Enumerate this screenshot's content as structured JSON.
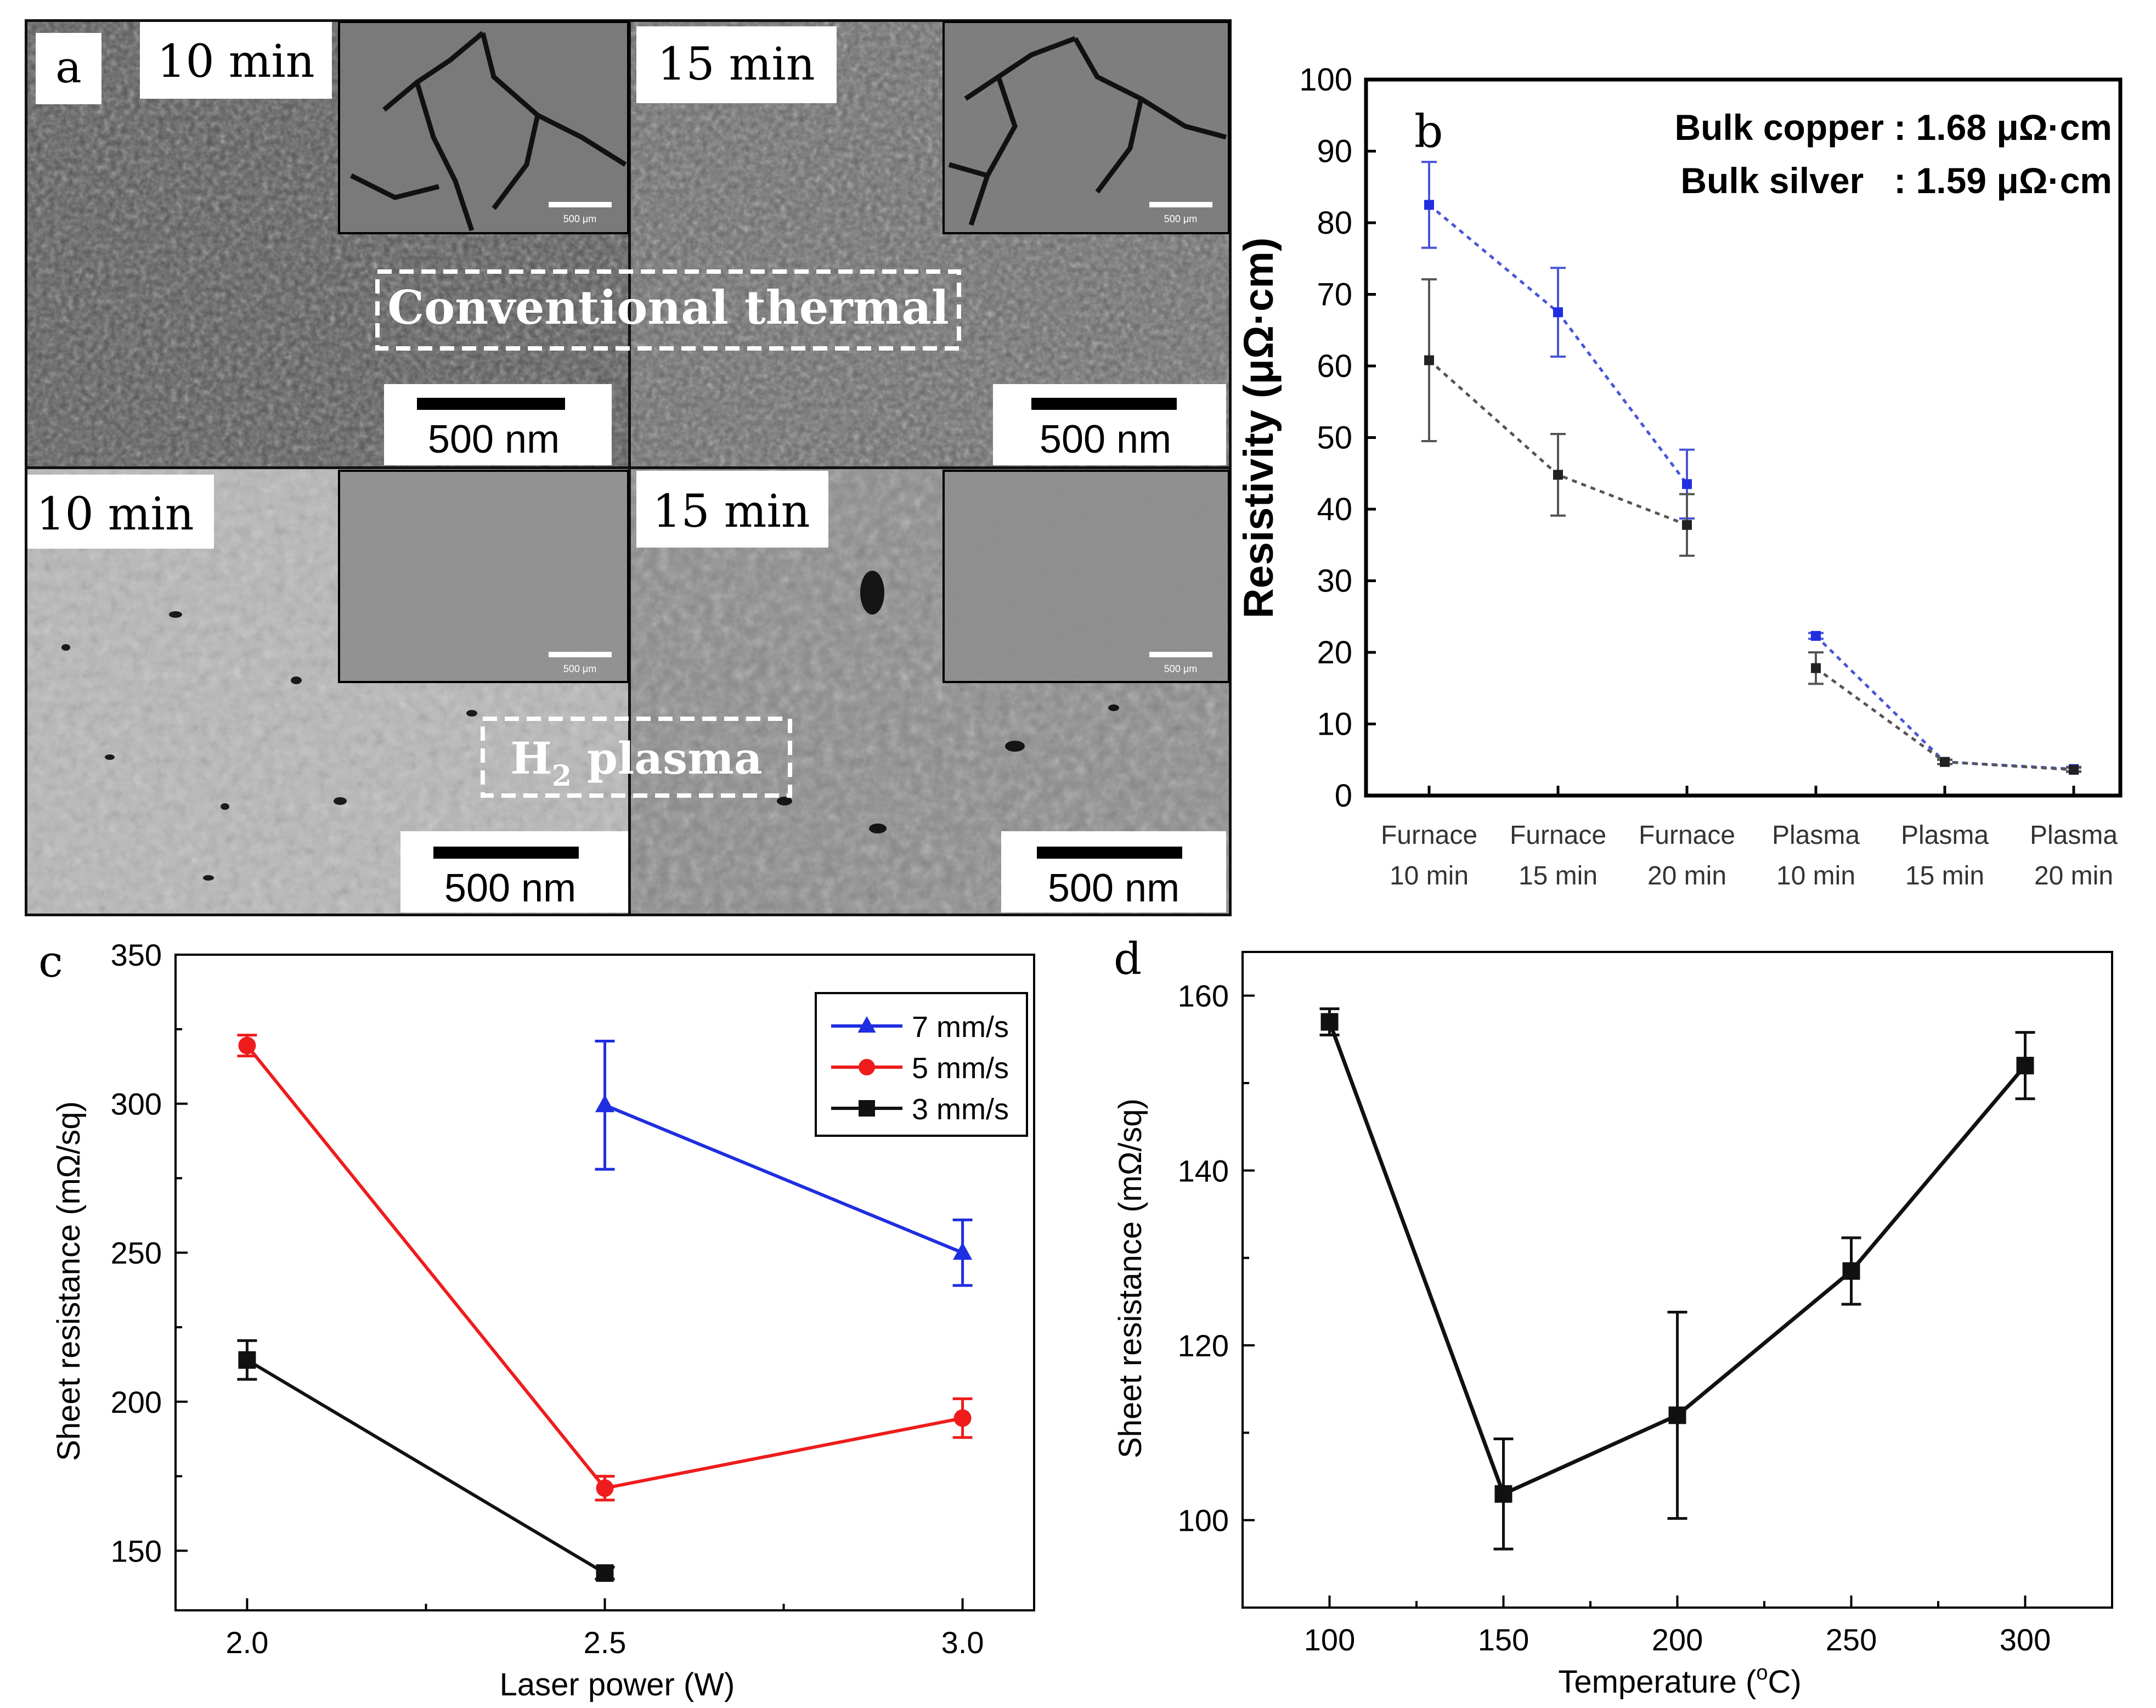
{
  "panel_a": {
    "letter": "a",
    "tiles": [
      {
        "time": "10 min",
        "scale_bar": "500 nm",
        "inset_scale": "500 μm"
      },
      {
        "time": "15 min",
        "scale_bar": "500 nm",
        "inset_scale": "500 μm"
      },
      {
        "time": "10 min",
        "scale_bar": "500 nm",
        "inset_scale": "500 μm"
      },
      {
        "time": "15 min",
        "scale_bar": "500 nm",
        "inset_scale": "500 μm"
      }
    ],
    "label_thermal": "Conventional thermal",
    "label_plasma_main": "H",
    "label_plasma_sub": "2",
    "label_plasma_tail": " plasma"
  },
  "colors": {
    "blue": "#1f2ee0",
    "red": "#ee1c1c",
    "black": "#111111",
    "blue_dotted": "#4a55d8",
    "gray_dotted": "#555555"
  },
  "chart_data": [
    {
      "id": "b",
      "type": "line",
      "letter": "b",
      "ylabel": "Resistivity (μΩ·cm)",
      "ylim": [
        0,
        100
      ],
      "yticks": [
        "0",
        "10",
        "20",
        "30",
        "40",
        "50",
        "60",
        "70",
        "80",
        "90",
        "100"
      ],
      "categories_line1": [
        "Furnace",
        "Furnace",
        "Furnace",
        "Plasma",
        "Plasma",
        "Plasma"
      ],
      "categories_line2": [
        "10 min",
        "15 min",
        "20 min",
        "10 min",
        "15 min",
        "20 min"
      ],
      "annotation1": "Bulk copper : 1.68 μΩ·cm",
      "annotation2": "Bulk silver   : 1.59 μΩ·cm",
      "series": [
        {
          "name": "blue",
          "segments": [
            [
              0,
              1,
              2
            ],
            [
              3,
              4,
              5
            ]
          ],
          "values": [
            82.5,
            67.5,
            43.5,
            22.3,
            4.7,
            3.7
          ],
          "err": [
            6,
            6.2,
            4.8,
            0.4,
            0.3,
            0.3
          ]
        },
        {
          "name": "black",
          "segments": [
            [
              0,
              1,
              2
            ],
            [
              3,
              4,
              5
            ]
          ],
          "values": [
            60.8,
            44.8,
            37.8,
            17.8,
            4.7,
            3.6
          ],
          "err": [
            11.3,
            5.7,
            4.3,
            2.2,
            0.3,
            0.3
          ]
        }
      ]
    },
    {
      "id": "c",
      "type": "line",
      "letter": "c",
      "xlabel": "Laser power (W)",
      "ylabel": "Sheet resistance (mΩ/sq)",
      "xlim": [
        1.9,
        3.1
      ],
      "ylim": [
        130,
        350
      ],
      "xticks": [
        "2.0",
        "2.5",
        "3.0"
      ],
      "yticks": [
        "150",
        "200",
        "250",
        "300",
        "350"
      ],
      "series": [
        {
          "name": "7 mm/s",
          "marker": "triangle",
          "x": [
            2.5,
            3.0
          ],
          "values": [
            299.5,
            250
          ],
          "err": [
            21.5,
            11
          ]
        },
        {
          "name": "5 mm/s",
          "marker": "circle",
          "x": [
            2.0,
            2.5,
            3.0
          ],
          "values": [
            319.5,
            171,
            194.5
          ],
          "err": [
            3.5,
            4,
            6.5
          ]
        },
        {
          "name": "3 mm/s",
          "marker": "square",
          "x": [
            2.0,
            2.5
          ],
          "values": [
            214,
            142.5
          ],
          "err": [
            6.5,
            2
          ]
        }
      ]
    },
    {
      "id": "d",
      "type": "line",
      "letter": "d",
      "xlabel": "Temperature (",
      "xlabel_sup": "o",
      "xlabel_tail": "C)",
      "ylabel": "Sheet resistance (mΩ/sq)",
      "xlim": [
        75,
        325
      ],
      "ylim": [
        90,
        165
      ],
      "xticks": [
        "100",
        "150",
        "200",
        "250",
        "300"
      ],
      "yticks": [
        "100",
        "120",
        "140",
        "160"
      ],
      "series": [
        {
          "name": "sheet resistance",
          "marker": "square",
          "x": [
            100,
            150,
            200,
            250,
            300
          ],
          "values": [
            157,
            103,
            112,
            128.5,
            152
          ],
          "err": [
            1.5,
            6.3,
            11.8,
            3.8,
            3.8
          ]
        }
      ]
    }
  ]
}
